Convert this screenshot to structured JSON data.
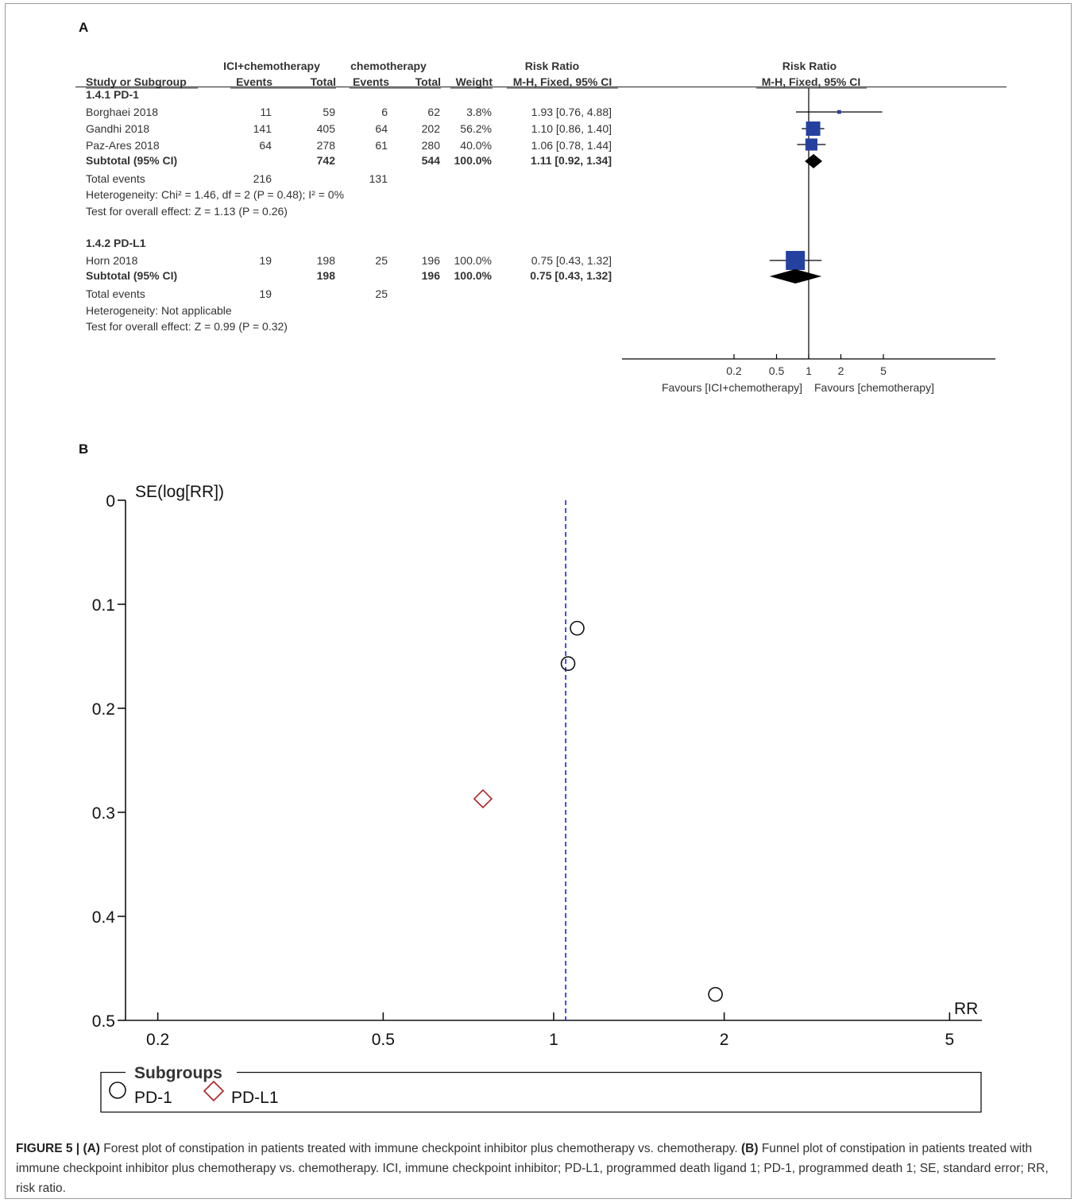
{
  "panel_a": {
    "label": "A",
    "group_headers": {
      "experimental": "ICI+chemotherapy",
      "control": "chemotherapy",
      "rr_text": "Risk Ratio",
      "rr_plot": "Risk Ratio"
    },
    "columns": [
      "Study or Subgroup",
      "Events",
      "Total",
      "Events",
      "Total",
      "Weight",
      "M-H, Fixed, 95% CI",
      "M-H, Fixed, 95% CI"
    ],
    "rows": [
      {
        "kind": "subgroup",
        "label": "1.4.1 PD-1"
      },
      {
        "kind": "study",
        "label": "Borghaei 2018",
        "exp_events": "11",
        "exp_total": "59",
        "ctl_events": "6",
        "ctl_total": "62",
        "weight": "3.8%",
        "ci_text": "1.93 [0.76, 4.88]"
      },
      {
        "kind": "study",
        "label": "Gandhi 2018",
        "exp_events": "141",
        "exp_total": "405",
        "ctl_events": "64",
        "ctl_total": "202",
        "weight": "56.2%",
        "ci_text": "1.10 [0.86, 1.40]"
      },
      {
        "kind": "study",
        "label": "Paz-Ares 2018",
        "exp_events": "64",
        "exp_total": "278",
        "ctl_events": "61",
        "ctl_total": "280",
        "weight": "40.0%",
        "ci_text": "1.06 [0.78, 1.44]"
      },
      {
        "kind": "subtotal",
        "label": "Subtotal (95% CI)",
        "exp_total": "742",
        "ctl_total": "544",
        "weight": "100.0%",
        "ci_text": "1.11 [0.92, 1.34]"
      },
      {
        "kind": "events",
        "label": "Total events",
        "exp_events": "216",
        "ctl_events": "131"
      },
      {
        "kind": "note",
        "label": "Heterogeneity: Chi² = 1.46, df = 2 (P = 0.48); I² = 0%"
      },
      {
        "kind": "note",
        "label": "Test for overall effect: Z = 1.13 (P = 0.26)"
      },
      {
        "kind": "subgroup",
        "label": "1.4.2 PD-L1"
      },
      {
        "kind": "study",
        "label": "Horn 2018",
        "exp_events": "19",
        "exp_total": "198",
        "ctl_events": "25",
        "ctl_total": "196",
        "weight": "100.0%",
        "ci_text": "0.75 [0.43, 1.32]"
      },
      {
        "kind": "subtotal",
        "label": "Subtotal (95% CI)",
        "exp_total": "198",
        "ctl_total": "196",
        "weight": "100.0%",
        "ci_text": "0.75 [0.43, 1.32]"
      },
      {
        "kind": "events",
        "label": "Total events",
        "exp_events": "19",
        "ctl_events": "25"
      },
      {
        "kind": "note",
        "label": "Heterogeneity: Not applicable"
      },
      {
        "kind": "note",
        "label": "Test for overall effect: Z = 0.99 (P = 0.32)"
      }
    ],
    "axis_ticks": [
      "0.2",
      "0.5",
      "1",
      "2",
      "5"
    ],
    "favours_left": "Favours [ICI+chemotherapy]",
    "favours_right": "Favours [chemotherapy]",
    "colors": {
      "square": "#2541a0",
      "diamond": "#000000",
      "line": "#000000"
    }
  },
  "panel_b": {
    "label": "B",
    "y_title": "SE(log[RR])",
    "x_title": "RR",
    "legend_title": "Subgroups",
    "legend_items": [
      {
        "label": "PD-1",
        "marker": "circle",
        "color": "#000000"
      },
      {
        "label": "PD-L1",
        "marker": "diamond",
        "color": "#b22222"
      }
    ],
    "colors": {
      "pooled_line": "#1a1aff"
    }
  },
  "caption": {
    "figure_label": "FIGURE 5 |",
    "a_label": "(A)",
    "a_text": " Forest plot of constipation in patients treated with immune checkpoint inhibitor plus chemotherapy vs. chemotherapy. ",
    "b_label": "(B)",
    "b_text": " Funnel plot of constipation in patients treated with immune checkpoint inhibitor plus chemotherapy vs. chemotherapy. ICI, immune checkpoint inhibitor; PD-L1, programmed death ligand 1; PD-1, programmed death 1; SE, standard error; RR, risk ratio."
  },
  "chart_data": [
    {
      "type": "forest",
      "title": "",
      "x_scale": "log",
      "xlim": [
        0.2,
        5
      ],
      "xticks": [
        0.2,
        0.5,
        1,
        2,
        5
      ],
      "reference_line": 1,
      "studies": [
        {
          "name": "Borghaei 2018",
          "subgroup": "1.4.1 PD-1",
          "rr": 1.93,
          "lower": 0.76,
          "upper": 4.88,
          "weight": 3.8
        },
        {
          "name": "Gandhi 2018",
          "subgroup": "1.4.1 PD-1",
          "rr": 1.1,
          "lower": 0.86,
          "upper": 1.4,
          "weight": 56.2
        },
        {
          "name": "Paz-Ares 2018",
          "subgroup": "1.4.1 PD-1",
          "rr": 1.06,
          "lower": 0.78,
          "upper": 1.44,
          "weight": 40.0
        },
        {
          "name": "Horn 2018",
          "subgroup": "1.4.2 PD-L1",
          "rr": 0.75,
          "lower": 0.43,
          "upper": 1.32,
          "weight": 100.0
        }
      ],
      "subtotals": [
        {
          "name": "Subtotal (95% CI)",
          "subgroup": "1.4.1 PD-1",
          "rr": 1.11,
          "lower": 0.92,
          "upper": 1.34
        },
        {
          "name": "Subtotal (95% CI)",
          "subgroup": "1.4.2 PD-L1",
          "rr": 0.75,
          "lower": 0.43,
          "upper": 1.32
        }
      ]
    },
    {
      "type": "scatter",
      "title": "",
      "xlabel": "RR",
      "ylabel": "SE(log[RR])",
      "x_scale": "log",
      "xlim": [
        0.17,
        5.5
      ],
      "xticks": [
        0.2,
        0.5,
        1,
        2,
        5
      ],
      "ylim": [
        0,
        0.5
      ],
      "y_inverted": true,
      "yticks": [
        0,
        0.1,
        0.2,
        0.3,
        0.4,
        0.5
      ],
      "pooled_rr": 1.05,
      "series": [
        {
          "name": "PD-1",
          "marker": "circle",
          "points": [
            {
              "x": 1.1,
              "y": 0.123
            },
            {
              "x": 1.06,
              "y": 0.157
            },
            {
              "x": 1.93,
              "y": 0.475
            }
          ]
        },
        {
          "name": "PD-L1",
          "marker": "diamond",
          "points": [
            {
              "x": 0.75,
              "y": 0.287
            }
          ]
        }
      ]
    }
  ]
}
